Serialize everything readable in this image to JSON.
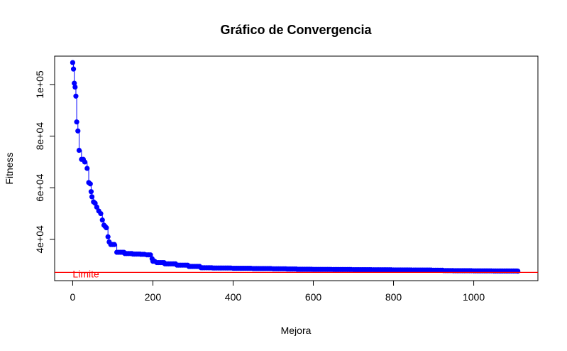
{
  "chart_data": {
    "type": "line",
    "title": "Gráfico de Convergencia",
    "xlabel": "Mejora",
    "ylabel": "Fitness",
    "xlim": [
      -45,
      1160
    ],
    "ylim": [
      24000,
      111000
    ],
    "x_ticks": [
      {
        "value": 0,
        "label": "0"
      },
      {
        "value": 200,
        "label": "200"
      },
      {
        "value": 400,
        "label": "400"
      },
      {
        "value": 600,
        "label": "600"
      },
      {
        "value": 800,
        "label": "800"
      },
      {
        "value": 1000,
        "label": "1000"
      }
    ],
    "y_ticks": [
      {
        "value": 40000,
        "label": "4e+04"
      },
      {
        "value": 60000,
        "label": "6e+04"
      },
      {
        "value": 80000,
        "label": "8e+04"
      },
      {
        "value": 100000,
        "label": "1e+05"
      }
    ],
    "series": [
      {
        "color": "#0000ff",
        "marker": "filled-circle",
        "x": [
          0,
          2,
          4,
          6,
          8,
          10,
          13,
          16,
          22,
          30,
          36,
          40,
          44,
          46,
          48,
          52,
          56,
          60,
          65,
          70,
          74,
          78,
          81,
          84,
          88,
          91,
          95,
          110,
          130,
          150,
          170,
          185,
          198,
          200,
          210,
          230,
          260,
          290,
          320,
          350,
          400,
          450,
          500,
          535,
          560,
          600,
          650,
          700,
          750,
          800,
          850,
          900,
          925,
          950,
          1000,
          1050,
          1110
        ],
        "y": [
          108500,
          106000,
          100500,
          99000,
          95500,
          85500,
          82000,
          74500,
          71000,
          70000,
          67500,
          62000,
          61500,
          58500,
          56500,
          54500,
          54000,
          52500,
          51000,
          50000,
          47500,
          45500,
          45000,
          44500,
          41000,
          39000,
          38000,
          35000,
          34500,
          34300,
          34200,
          34000,
          32500,
          31500,
          31000,
          30500,
          30000,
          29500,
          29000,
          28900,
          28800,
          28700,
          28600,
          28500,
          28400,
          28350,
          28300,
          28250,
          28200,
          28150,
          28100,
          28050,
          27900,
          27850,
          27800,
          27750,
          27700
        ]
      }
    ],
    "hline": {
      "y": 27200,
      "color": "#ff0000",
      "label": "Limite"
    },
    "grid": false,
    "legend": "none"
  }
}
